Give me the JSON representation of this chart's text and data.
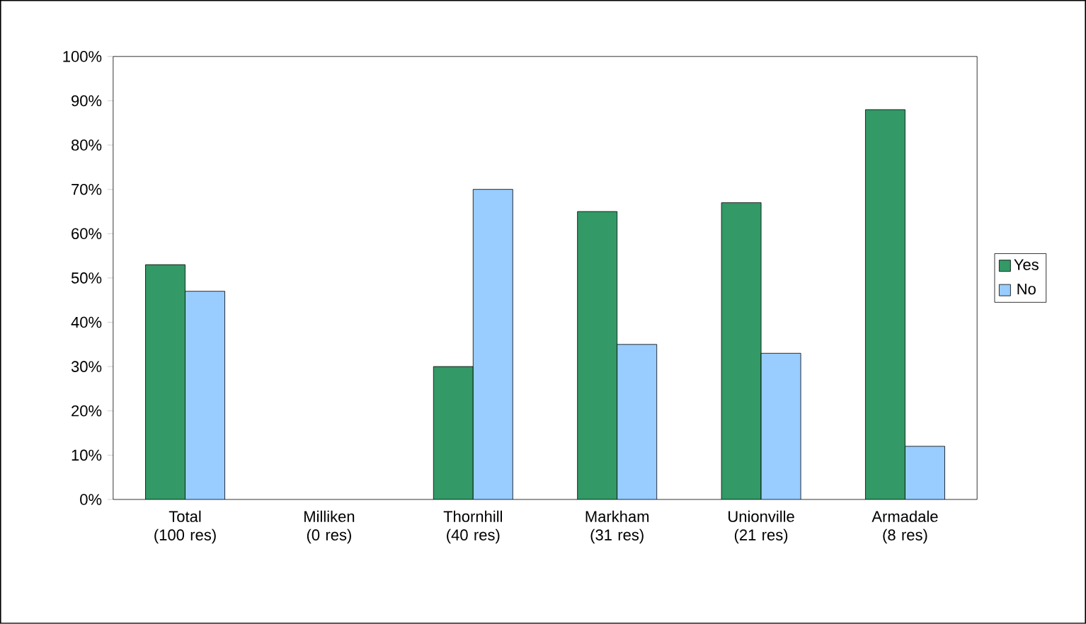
{
  "chart_data": {
    "type": "bar",
    "categories": [
      "Total (100 res)",
      "Milliken (0 res)",
      "Thornhill (40 res)",
      "Markham (31 res)",
      "Unionville (21 res)",
      "Armadale (8 res)"
    ],
    "series": [
      {
        "name": "Yes",
        "color": "#339966",
        "values": [
          53,
          null,
          30,
          65,
          67,
          88
        ]
      },
      {
        "name": "No",
        "color": "#99ccff",
        "values": [
          47,
          null,
          70,
          35,
          33,
          12
        ]
      }
    ],
    "ylim": [
      0,
      100
    ],
    "yticks": [
      {
        "value": 0,
        "label": "0%"
      },
      {
        "value": 10,
        "label": "10%"
      },
      {
        "value": 20,
        "label": "20%"
      },
      {
        "value": 30,
        "label": "30%"
      },
      {
        "value": 40,
        "label": "40%"
      },
      {
        "value": 50,
        "label": "50%"
      },
      {
        "value": 60,
        "label": "60%"
      },
      {
        "value": 70,
        "label": "70%"
      },
      {
        "value": 80,
        "label": "80%"
      },
      {
        "value": 90,
        "label": "90%"
      },
      {
        "value": 100,
        "label": "100%"
      }
    ],
    "grid": false,
    "legend": "right"
  }
}
